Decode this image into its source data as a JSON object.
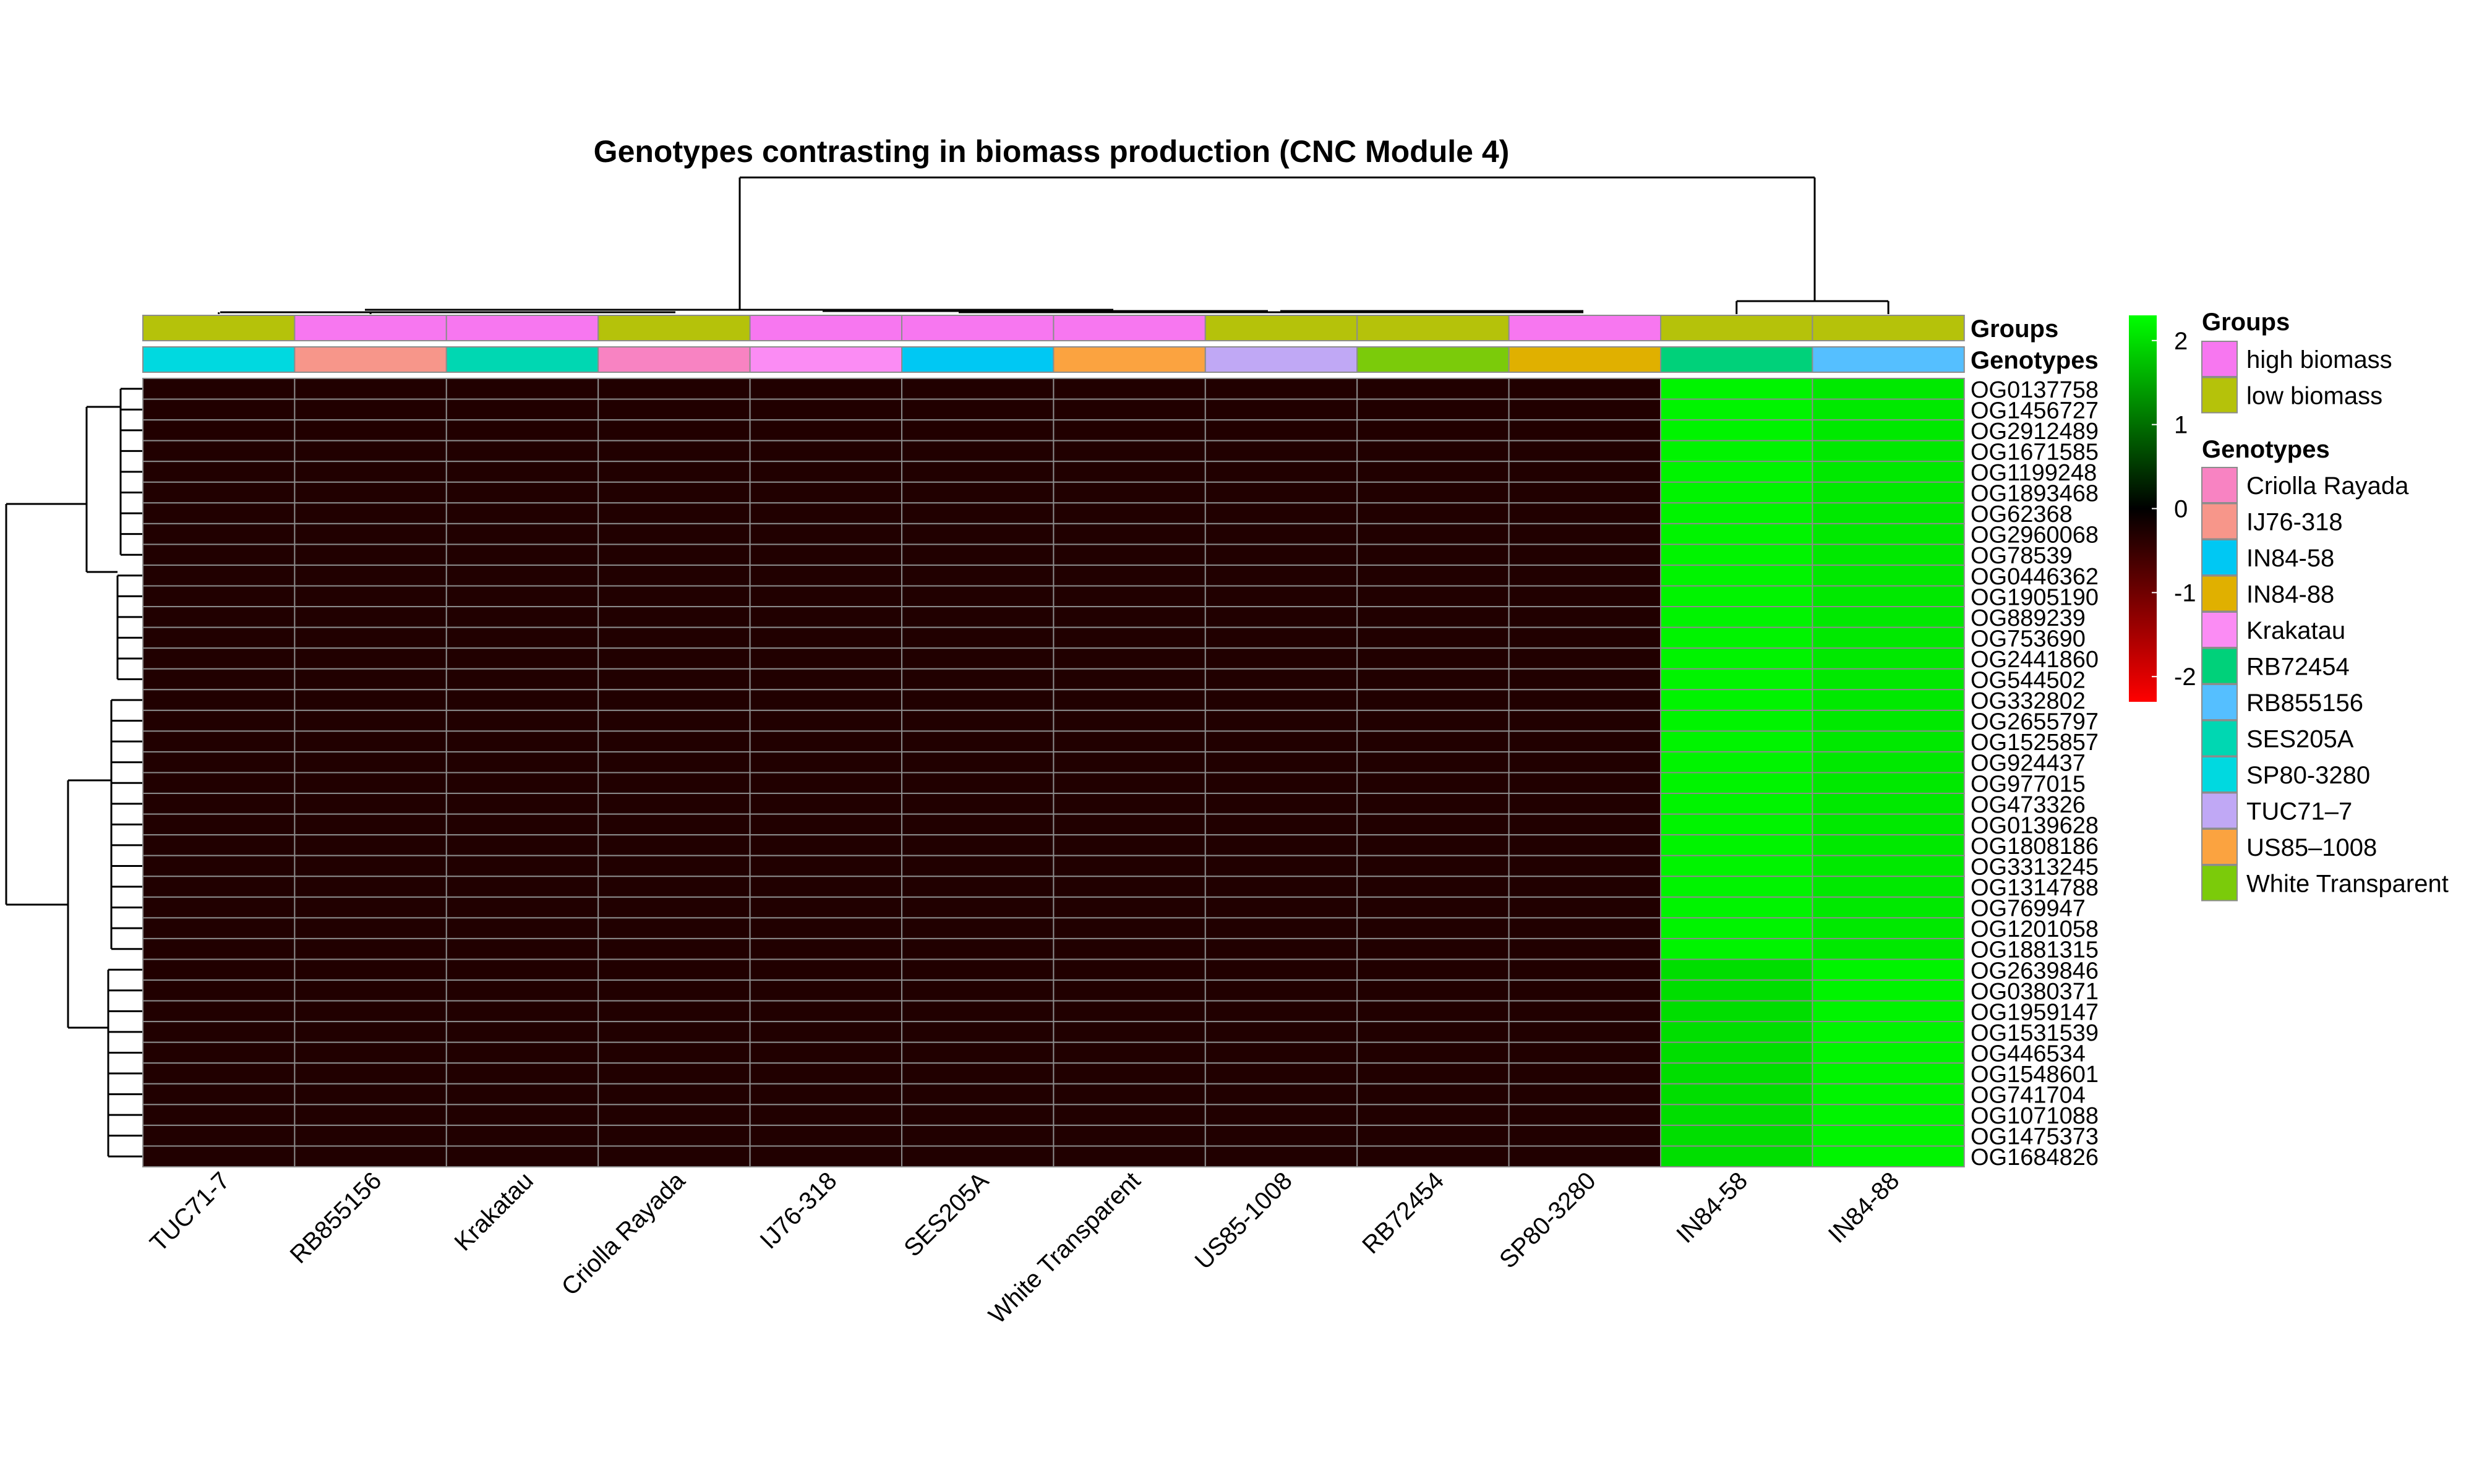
{
  "chart_data": {
    "type": "heatmap",
    "title": "Genotypes contrasting in biomass production (CNC Module 4)",
    "columns": [
      "TUC71-7",
      "RB855156",
      "Krakatau",
      "Criolla Rayada",
      "IJ76-318",
      "SES205A",
      "White Transparent",
      "US85-1008",
      "RB72454",
      "SP80-3280",
      "IN84-58",
      "IN84-88"
    ],
    "rows": [
      "OG0137758",
      "OG1456727",
      "OG2912489",
      "OG1671585",
      "OG1199248",
      "OG1893468",
      "OG62368",
      "OG2960068",
      "OG78539",
      "OG0446362",
      "OG1905190",
      "OG889239",
      "OG753690",
      "OG2441860",
      "OG544502",
      "OG332802",
      "OG2655797",
      "OG1525857",
      "OG924437",
      "OG977015",
      "OG473326",
      "OG0139628",
      "OG1808186",
      "OG3313245",
      "OG1314788",
      "OG769947",
      "OG1201058",
      "OG1881315",
      "OG2639846",
      "OG0380371",
      "OG1959147",
      "OG1531539",
      "OG446534",
      "OG1548601",
      "OG741704",
      "OG1071088",
      "OG1475373",
      "OG1684826"
    ],
    "low_value": -0.3,
    "in84_58_values": [
      2.2,
      2.2,
      2.2,
      2.2,
      2.2,
      2.2,
      2.2,
      2.2,
      2.2,
      2.2,
      2.2,
      2.2,
      2.2,
      2.2,
      2.2,
      2.2,
      2.2,
      2.2,
      2.2,
      2.2,
      2.2,
      2.2,
      2.2,
      2.2,
      2.2,
      2.2,
      2.2,
      2.2,
      2.0,
      2.0,
      2.0,
      2.0,
      2.0,
      2.0,
      2.0,
      2.0,
      2.0,
      2.0
    ],
    "in84_88_values": [
      2.1,
      2.1,
      2.1,
      2.1,
      2.1,
      2.1,
      2.1,
      2.1,
      2.1,
      2.1,
      2.1,
      2.1,
      2.1,
      2.1,
      2.1,
      2.1,
      2.1,
      2.1,
      2.1,
      2.1,
      2.1,
      2.1,
      2.1,
      2.1,
      2.1,
      2.1,
      2.1,
      2.1,
      2.2,
      2.2,
      2.2,
      2.2,
      2.2,
      2.2,
      2.2,
      2.2,
      2.2,
      2.2
    ],
    "color_scale": {
      "range": [
        -2.3,
        2.3
      ],
      "ticks": [
        2,
        1,
        0,
        -1,
        -2
      ],
      "low_color": "#ff0000",
      "mid_color": "#000000",
      "high_color": "#00ff00"
    },
    "annotations": {
      "groups_label": "Groups",
      "genotypes_label": "Genotypes",
      "column_groups": [
        "low biomass",
        "high biomass",
        "high biomass",
        "low biomass",
        "high biomass",
        "high biomass",
        "high biomass",
        "low biomass",
        "low biomass",
        "high biomass",
        "low biomass",
        "low biomass"
      ]
    },
    "legend": {
      "groups_title": "Groups",
      "groups": [
        {
          "name": "high biomass",
          "color": "#f777f0"
        },
        {
          "name": "low biomass",
          "color": "#b5c20a"
        }
      ],
      "genotypes_title": "Genotypes",
      "genotypes": [
        {
          "name": "Criolla Rayada",
          "color": "#f883c2",
          "column": "Criolla Rayada"
        },
        {
          "name": "IJ76-318",
          "color": "#f7968a",
          "column": "IJ76-318"
        },
        {
          "name": "IN84-58",
          "color": "#00c8f3",
          "column": "SES205A"
        },
        {
          "name": "IN84-88",
          "color": "#e0b000",
          "column": "SP80-3280"
        },
        {
          "name": "Krakatau",
          "color": "#fb8cf4",
          "column": "IJ76-318"
        },
        {
          "name": "RB72454",
          "color": "#00d17a",
          "column": "IN84-58"
        },
        {
          "name": "RB855156",
          "color": "#55bfff",
          "column": "IN84-88"
        },
        {
          "name": "SES205A",
          "color": "#00d7b2",
          "column": "Krakatau"
        },
        {
          "name": "SP80-3280",
          "color": "#00d9e0",
          "column": "TUC71-7"
        },
        {
          "name": "TUC71–7",
          "color": "#c0a8f5",
          "column": "US85-1008"
        },
        {
          "name": "US85–1008",
          "color": "#fba340",
          "column": "White Transparent"
        },
        {
          "name": "White Transparent",
          "color": "#7bcb0a",
          "column": "RB72454"
        }
      ]
    },
    "column_genotype_colors": [
      "#00d9e0",
      "#f7968a",
      "#00d7b2",
      "#f883c2",
      "#fb8cf4",
      "#00c8f3",
      "#fba340",
      "#c0a8f5",
      "#7bcb0a",
      "#e0b000",
      "#00d17a",
      "#55bfff"
    ]
  }
}
